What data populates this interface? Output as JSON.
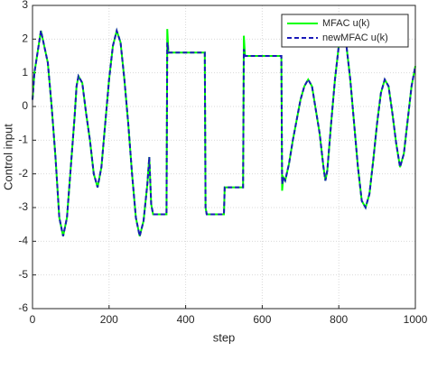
{
  "chart_data": {
    "type": "line",
    "xlabel": "step",
    "ylabel": "Control input",
    "x": [
      0,
      5,
      22,
      40,
      50,
      60,
      70,
      80,
      90,
      100,
      110,
      115,
      120,
      130,
      140,
      150,
      160,
      170,
      180,
      190,
      200,
      210,
      220,
      230,
      240,
      250,
      260,
      270,
      280,
      290,
      300,
      305,
      310,
      315,
      350,
      352,
      355,
      450,
      452,
      455,
      500,
      502,
      550,
      552,
      555,
      650,
      652,
      655,
      660,
      670,
      680,
      690,
      700,
      710,
      720,
      730,
      740,
      750,
      760,
      765,
      770,
      780,
      790,
      800,
      810,
      820,
      830,
      840,
      850,
      860,
      870,
      880,
      890,
      900,
      910,
      920,
      930,
      940,
      950,
      960,
      970,
      980,
      990,
      1000
    ],
    "series": [
      {
        "name": "MFAC u(k)",
        "color": "#00ff00",
        "dash": false,
        "values": [
          0.2,
          1,
          2.25,
          1.3,
          0,
          -1.5,
          -3.3,
          -3.85,
          -3.3,
          -1.8,
          -0.3,
          0.6,
          0.9,
          0.7,
          -0.2,
          -1,
          -2,
          -2.4,
          -1.8,
          -0.5,
          0.8,
          1.8,
          2.25,
          1.9,
          0.8,
          -0.5,
          -2,
          -3.3,
          -3.85,
          -3.4,
          -2.3,
          -1.5,
          -2.9,
          -3.2,
          -3.2,
          2.3,
          1.6,
          1.6,
          -3.0,
          -3.2,
          -3.2,
          -2.4,
          -2.4,
          2.1,
          1.5,
          1.5,
          -2.5,
          -2.1,
          -2.2,
          -1.7,
          -1.0,
          -0.4,
          0.2,
          0.6,
          0.8,
          0.6,
          -0.1,
          -0.8,
          -1.8,
          -2.2,
          -1.9,
          -0.5,
          0.8,
          1.8,
          2.2,
          1.8,
          0.8,
          -0.5,
          -1.8,
          -2.8,
          -3.0,
          -2.6,
          -1.6,
          -0.5,
          0.4,
          0.8,
          0.6,
          -0.2,
          -1.1,
          -1.8,
          -1.4,
          -0.4,
          0.6,
          1.2
        ]
      },
      {
        "name": "newMFAC u(k)",
        "color": "#1a1ab8",
        "dash": true,
        "values": [
          0.2,
          1,
          2.25,
          1.3,
          0,
          -1.5,
          -3.3,
          -3.85,
          -3.3,
          -1.8,
          -0.3,
          0.6,
          0.9,
          0.7,
          -0.2,
          -1,
          -2,
          -2.4,
          -1.8,
          -0.5,
          0.8,
          1.8,
          2.25,
          1.9,
          0.8,
          -0.5,
          -2,
          -3.3,
          -3.85,
          -3.4,
          -2.3,
          -1.5,
          -2.9,
          -3.2,
          -3.2,
          1.9,
          1.6,
          1.6,
          -3.0,
          -3.2,
          -3.2,
          -2.4,
          -2.4,
          1.7,
          1.5,
          1.5,
          -2.3,
          -2.1,
          -2.2,
          -1.7,
          -1.0,
          -0.4,
          0.2,
          0.6,
          0.8,
          0.6,
          -0.1,
          -0.8,
          -1.8,
          -2.2,
          -1.9,
          -0.5,
          0.8,
          1.8,
          2.2,
          1.8,
          0.8,
          -0.5,
          -1.8,
          -2.8,
          -3.0,
          -2.6,
          -1.6,
          -0.5,
          0.4,
          0.8,
          0.6,
          -0.2,
          -1.1,
          -1.8,
          -1.4,
          -0.4,
          0.6,
          1.2
        ]
      }
    ],
    "xlim": [
      0,
      1000
    ],
    "xticks": [
      0,
      200,
      400,
      600,
      800,
      1000
    ],
    "ylim": [
      -6,
      3
    ],
    "yticks": [
      -6,
      -5,
      -4,
      -3,
      -2,
      -1,
      0,
      1,
      2,
      3
    ],
    "grid": true,
    "legend": "northeast"
  }
}
